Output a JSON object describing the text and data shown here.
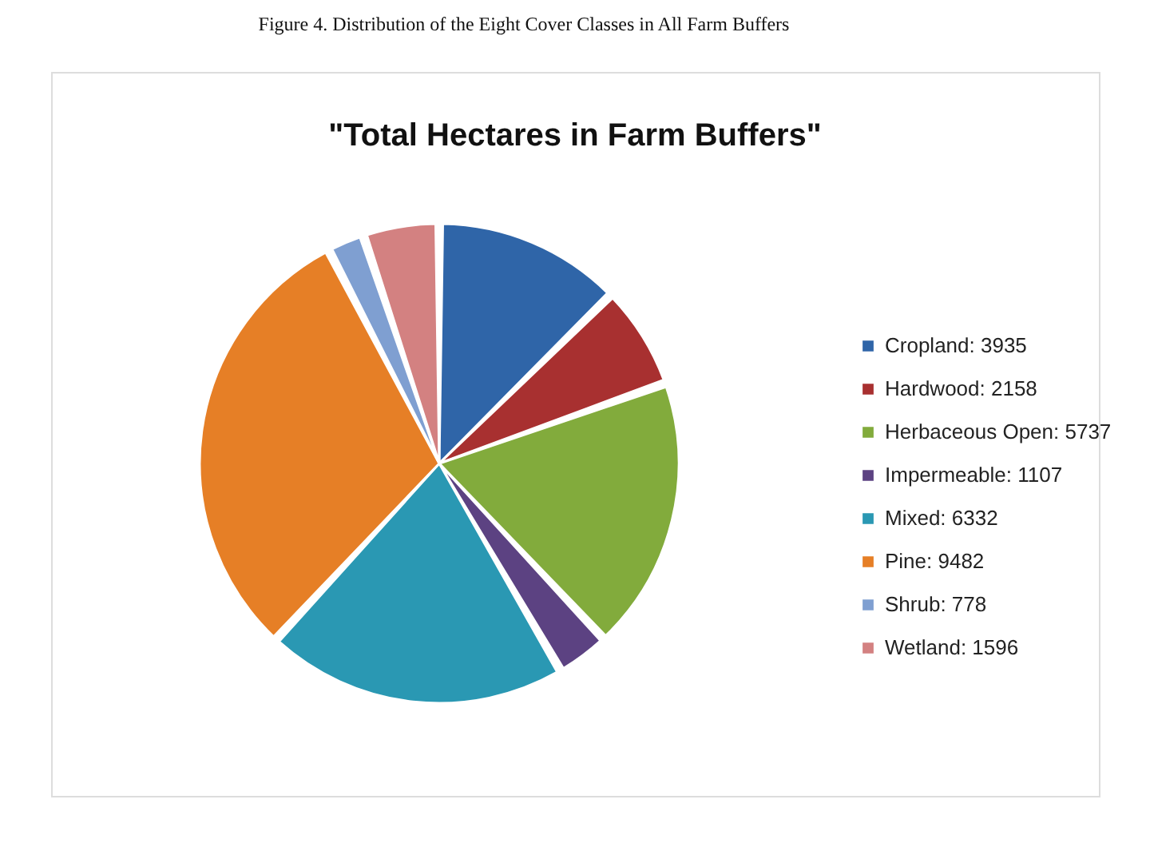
{
  "chart_data": {
    "type": "pie",
    "title": "\"Total Hectares in Farm Buffers\"",
    "annotations": [
      "Figure 4. Distribution of the Eight Cover Classes in All Farm Buffers"
    ],
    "categories": [
      "Cropland: 3935",
      "Hardwood: 2158",
      "Herbaceous Open: 5737",
      "Impermeable: 1107",
      "Mixed: 6332",
      "Pine: 9482",
      "Shrub: 778",
      "Wetland: 1596"
    ],
    "values": [
      3935,
      2158,
      5737,
      1107,
      6332,
      9482,
      778,
      1596
    ],
    "colors": [
      "#2f65a8",
      "#a83030",
      "#82ab3c",
      "#5c4282",
      "#2a98b3",
      "#e67f26",
      "#7f9fd1",
      "#d38181"
    ],
    "legend": "right"
  }
}
